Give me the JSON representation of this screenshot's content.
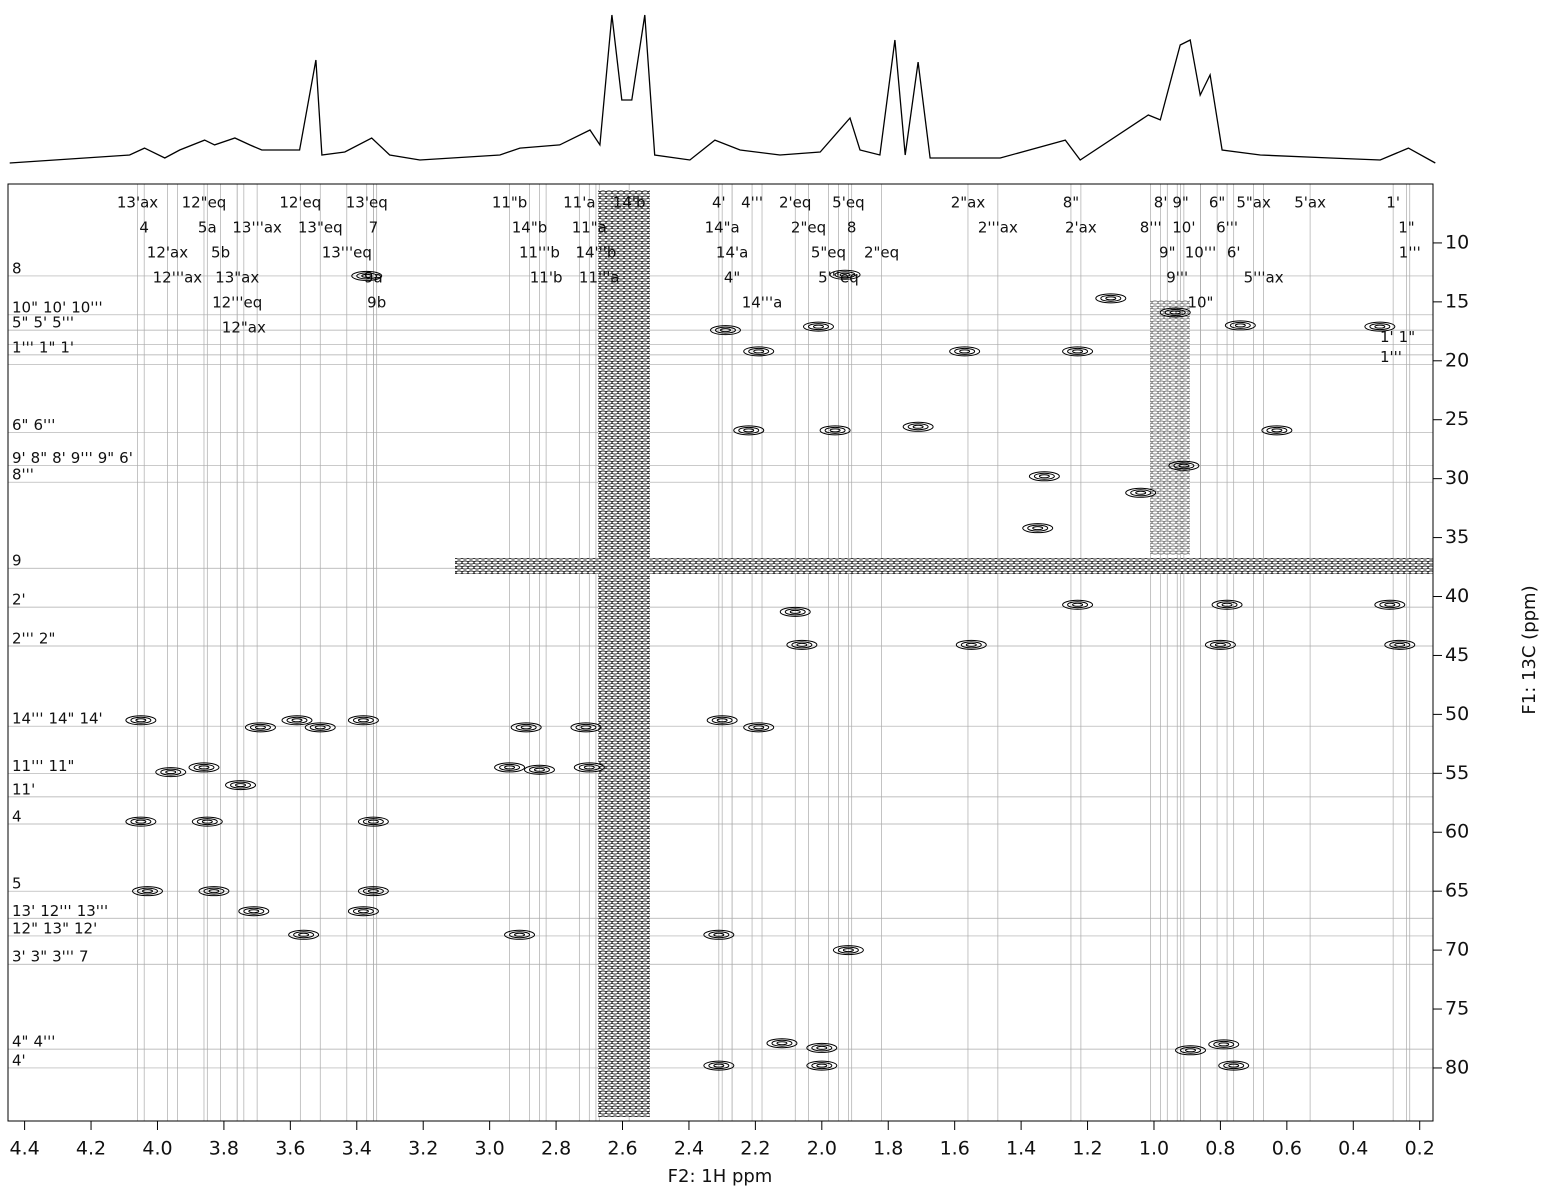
{
  "chart_data": {
    "type": "contour",
    "x_label": "F2: 1H ppm",
    "y_label": "F1: 13C (ppm)",
    "xlim": [
      4.45,
      0.16
    ],
    "ylim": [
      5,
      84.5
    ],
    "xticks": [
      4.4,
      4.2,
      {
        "value": 4.0,
        "label": "4.0"
      },
      3.8,
      3.6,
      3.4,
      3.2,
      {
        "value": 3.0,
        "label": "3.0"
      },
      2.8,
      2.6,
      2.4,
      2.2,
      {
        "value": 2.0,
        "label": "2.0"
      },
      1.8,
      1.6,
      1.4,
      1.2,
      {
        "value": 1.0,
        "label": "1.0"
      },
      0.8,
      0.6,
      0.4,
      0.2
    ],
    "yticks": [
      10,
      15,
      20,
      25,
      30,
      35,
      40,
      45,
      50,
      55,
      60,
      65,
      70,
      75,
      80
    ],
    "projection": {
      "ylim": [
        0,
        100
      ],
      "x": [
        4.445,
        4.084,
        4.039,
        3.978,
        3.933,
        3.858,
        3.828,
        3.767,
        3.722,
        3.686,
        3.572,
        3.523,
        3.505,
        3.436,
        3.355,
        3.301,
        3.21,
        2.969,
        2.909,
        2.789,
        2.698,
        2.668,
        2.632,
        2.602,
        2.572,
        2.533,
        2.503,
        2.397,
        2.322,
        2.246,
        2.126,
        2.005,
        1.915,
        1.885,
        1.825,
        1.78,
        1.749,
        1.71,
        1.674,
        1.463,
        1.267,
        1.222,
        1.017,
        0.981,
        0.945,
        0.921,
        0.891,
        0.861,
        0.831,
        0.795,
        0.68,
        0.469,
        0.319,
        0.234,
        0.153
      ],
      "values": [
        0,
        5.4,
        10.1,
        3.4,
        8.8,
        15.5,
        12.2,
        16.9,
        12.2,
        8.8,
        8.8,
        69.6,
        5.4,
        7.4,
        16.9,
        5.4,
        2.0,
        5.4,
        10.1,
        12.2,
        22.3,
        12.2,
        100,
        42.6,
        42.6,
        100,
        5.4,
        2.0,
        15.5,
        8.8,
        5.4,
        7.4,
        30.4,
        8.8,
        5.4,
        83.1,
        5.4,
        68.2,
        3.4,
        3.4,
        15.5,
        2.0,
        32.4,
        29.1,
        59.5,
        79.7,
        83.1,
        45.9,
        59.5,
        8.8,
        5.4,
        3.4,
        2.0,
        10.1,
        0
      ]
    },
    "peaks": {
      "x": [
        0.936,
        0.91,
        4.05,
        3.69,
        3.58,
        3.38,
        3.51,
        2.89,
        2.71,
        2.3,
        2.19,
        4.03,
        3.83,
        3.35,
        4.05,
        3.85,
        3.35,
        3.96,
        3.86,
        3.75,
        2.94,
        2.85,
        2.7,
        3.71,
        3.38,
        3.56,
        2.91,
        2.31,
        1.92,
        2.08,
        1.23,
        0.78,
        0.29,
        2.06,
        1.55,
        0.8,
        0.26,
        1.71,
        2.22,
        1.96,
        0.63,
        2.29,
        2.01,
        0.74,
        2.19,
        1.23,
        1.57,
        1.93,
        3.37,
        0.79,
        2.12,
        2.0,
        1.33,
        1.04,
        1.35,
        2.31,
        2.0,
        0.76,
        0.89,
        1.13,
        0.32
      ],
      "values": [
        15.9,
        28.9,
        50.5,
        51.1,
        50.5,
        50.5,
        51.1,
        51.1,
        51.1,
        50.5,
        51.1,
        65.0,
        65.0,
        65.0,
        59.1,
        59.1,
        59.1,
        54.9,
        54.5,
        56.0,
        54.5,
        54.7,
        54.5,
        66.7,
        66.7,
        68.7,
        68.7,
        68.7,
        70.0,
        41.3,
        40.7,
        40.7,
        40.7,
        44.1,
        44.1,
        44.1,
        44.1,
        25.6,
        25.9,
        25.9,
        25.9,
        17.4,
        17.1,
        17.0,
        19.2,
        19.2,
        19.2,
        12.7,
        12.8,
        78.0,
        77.9,
        78.3,
        29.8,
        31.2,
        34.2,
        79.8,
        79.8,
        79.8,
        78.5,
        14.7,
        17.1
      ]
    },
    "top_labels": [
      [
        {
          "label": "13'ax",
          "ppm": 4.06
        },
        {
          "label": "12\"eq",
          "ppm": 3.86
        },
        {
          "label": "12'eq",
          "ppm": 3.57
        },
        {
          "label": "13'eq",
          "ppm": 3.37
        },
        {
          "label": "11\"b",
          "ppm": 2.94
        },
        {
          "label": "11'a",
          "ppm": 2.73
        },
        {
          "label": "14'b",
          "ppm": 2.58
        },
        {
          "label": "4'",
          "ppm": 2.31
        },
        {
          "label": "4'''",
          "ppm": 2.21
        },
        {
          "label": "2'eq",
          "ppm": 2.08
        },
        {
          "label": "5'eq",
          "ppm": 1.92
        },
        {
          "label": "2\"ax",
          "ppm": 1.56
        },
        {
          "label": "8\"",
          "ppm": 1.25
        },
        {
          "label": "8'",
          "ppm": 0.98
        },
        {
          "label": "9\"",
          "ppm": 0.92
        },
        {
          "label": "6\"",
          "ppm": 0.81
        },
        {
          "label": "5\"ax",
          "ppm": 0.7
        },
        {
          "label": "5'ax",
          "ppm": 0.53
        },
        {
          "label": "1'",
          "ppm": 0.28
        }
      ],
      [
        {
          "label": "4",
          "ppm": 4.04
        },
        {
          "label": "5a",
          "ppm": 3.85
        },
        {
          "label": "13'''ax",
          "ppm": 3.7
        },
        {
          "label": "13\"eq",
          "ppm": 3.51
        },
        {
          "label": "7",
          "ppm": 3.35
        },
        {
          "label": "14\"b",
          "ppm": 2.88
        },
        {
          "label": "11\"a",
          "ppm": 2.7
        },
        {
          "label": "14\"a",
          "ppm": 2.3
        },
        {
          "label": "2\"eq",
          "ppm": 2.04
        },
        {
          "label": "8",
          "ppm": 1.91
        },
        {
          "label": "2'''ax",
          "ppm": 1.47
        },
        {
          "label": "2'ax",
          "ppm": 1.22
        },
        {
          "label": "8'''",
          "ppm": 1.01
        },
        {
          "label": "10'",
          "ppm": 0.91
        },
        {
          "label": "6'''",
          "ppm": 0.78
        },
        {
          "label": "1\"",
          "ppm": 0.24
        }
      ],
      [
        {
          "label": "12'ax",
          "ppm": 3.97
        },
        {
          "label": "5b",
          "ppm": 3.81
        },
        {
          "label": "13'''eq",
          "ppm": 3.43
        },
        {
          "label": "11'''b",
          "ppm": 2.85
        },
        {
          "label": "14'''b",
          "ppm": 2.68
        },
        {
          "label": "14'a",
          "ppm": 2.27
        },
        {
          "label": "5\"eq",
          "ppm": 1.98
        },
        {
          "label": "2\"eq",
          "ppm": 1.82
        },
        {
          "label": "9\"",
          "ppm": 0.96
        },
        {
          "label": "10'''",
          "ppm": 0.86
        },
        {
          "label": "6'",
          "ppm": 0.76
        },
        {
          "label": "1'''",
          "ppm": 0.23
        }
      ],
      [
        {
          "label": "12'''ax",
          "ppm": 3.94
        },
        {
          "label": "13\"ax",
          "ppm": 3.76
        },
        {
          "label": "9a",
          "ppm": 3.35
        },
        {
          "label": "11'b",
          "ppm": 2.83
        },
        {
          "label": "11'''a",
          "ppm": 2.67
        },
        {
          "label": "4\"",
          "ppm": 2.27
        },
        {
          "label": "5'''eq",
          "ppm": 1.95
        },
        {
          "label": "9'''",
          "ppm": 0.93
        },
        {
          "label": "5'''ax",
          "ppm": 0.67
        }
      ],
      [
        {
          "label": "12'''eq",
          "ppm": 3.76
        },
        {
          "label": "9b",
          "ppm": 3.34
        },
        {
          "label": "14'''a",
          "ppm": 2.18
        },
        {
          "label": "10\"",
          "ppm": 0.86
        }
      ],
      [
        {
          "label": "12\"ax",
          "ppm": 3.74
        }
      ]
    ],
    "left_labels": [
      {
        "ppm": 12.8,
        "labels": [
          "8"
        ]
      },
      {
        "ppm": 16.1,
        "labels": [
          "10\"",
          "10'",
          "10'''"
        ]
      },
      {
        "ppm": 17.4,
        "labels": [
          "5\"",
          "5'",
          "5'''"
        ]
      },
      {
        "ppm": 19.5,
        "labels": [
          "1'''",
          "1\"",
          "1'"
        ]
      },
      {
        "ppm": 26.1,
        "labels": [
          "6\"",
          "6'''"
        ]
      },
      {
        "ppm": 28.9,
        "labels": [
          "9'",
          "8\"",
          "8'",
          "9'''",
          "9\"",
          "6'"
        ]
      },
      {
        "ppm": 30.3,
        "labels": [
          "8'''"
        ]
      },
      {
        "ppm": 37.6,
        "labels": [
          "9"
        ]
      },
      {
        "ppm": 40.9,
        "labels": [
          "2'"
        ]
      },
      {
        "ppm": 44.2,
        "labels": [
          "2'''",
          "2\""
        ]
      },
      {
        "ppm": 51.0,
        "labels": [
          "14'''",
          "14\"",
          "14'"
        ]
      },
      {
        "ppm": 55.0,
        "labels": [
          "11'''",
          "11\""
        ]
      },
      {
        "ppm": 57.0,
        "labels": [
          "11'"
        ]
      },
      {
        "ppm": 59.3,
        "labels": [
          "4"
        ]
      },
      {
        "ppm": 65.0,
        "labels": [
          "5"
        ]
      },
      {
        "ppm": 67.3,
        "labels": [
          "13'",
          "12'''",
          "13'''"
        ]
      },
      {
        "ppm": 68.8,
        "labels": [
          "12\"",
          "13\"",
          "12'"
        ]
      },
      {
        "ppm": 71.2,
        "labels": [
          "3'",
          "3\"",
          "3'''",
          "7"
        ]
      },
      {
        "ppm": 78.4,
        "labels": [
          "4\"",
          "4'''"
        ]
      },
      {
        "ppm": 80.0,
        "labels": [
          "4'"
        ]
      }
    ],
    "right_labels": [
      {
        "ppm": 18.6,
        "labels": [
          "1'",
          "1\""
        ]
      },
      {
        "ppm": 20.3,
        "labels": [
          "1'''"
        ]
      }
    ]
  }
}
